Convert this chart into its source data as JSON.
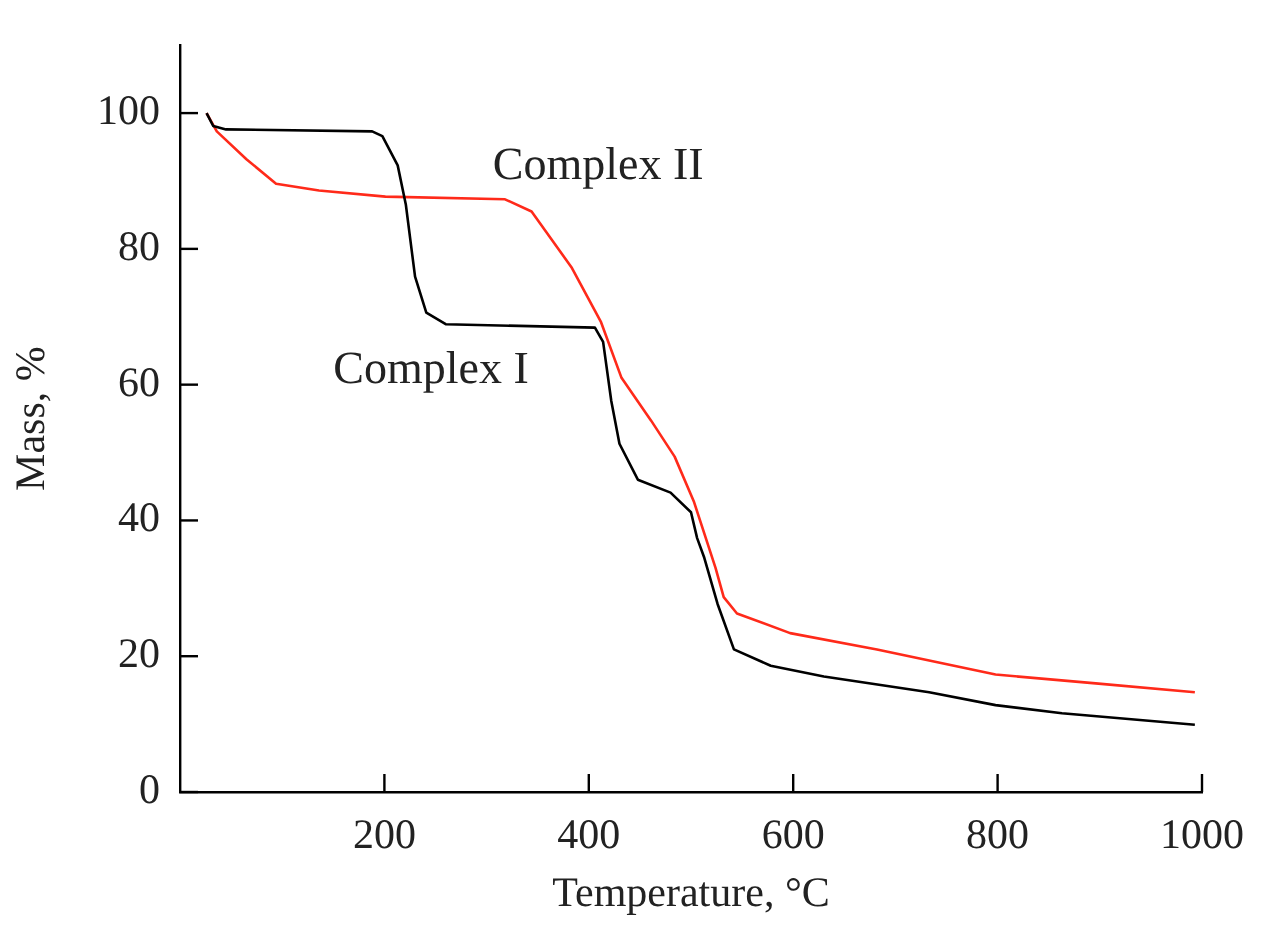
{
  "chart_data": {
    "type": "line",
    "xlabel": "Temperature, °C",
    "ylabel": "Mass, %",
    "xlim": [
      0,
      1000
    ],
    "xticks": [
      200,
      400,
      600,
      800,
      1000
    ],
    "ylim": [
      0,
      110
    ],
    "yticks": [
      0,
      20,
      40,
      60,
      80,
      100
    ],
    "grid": false,
    "legend": false,
    "marker": "none",
    "line_style": "solid",
    "series": [
      {
        "name": "Complex I",
        "color": "#000000",
        "x": [
          26,
          32.5,
          45,
          188,
          198,
          213,
          221,
          230,
          241,
          260,
          406,
          414,
          422,
          430,
          448,
          480,
          500,
          506,
          513,
          526,
          542,
          578,
          630,
          733,
          798,
          863,
          993
        ],
        "values": [
          100,
          98.1,
          97.6,
          97.3,
          96.6,
          92.3,
          86.5,
          75.9,
          70.6,
          68.9,
          68.4,
          66.3,
          57.6,
          51.3,
          46.0,
          44.1,
          41.2,
          37.4,
          34.5,
          27.7,
          21.0,
          18.6,
          17.0,
          14.7,
          12.8,
          11.6,
          9.9
        ]
      },
      {
        "name": "Complex II",
        "color": "#ff2a1a",
        "x": [
          26,
          36,
          65,
          94,
          136,
          201,
          318,
          344,
          383,
          412,
          432,
          461,
          484,
          503,
          524,
          532,
          545,
          597,
          682,
          798,
          896,
          993
        ],
        "values": [
          100,
          97.3,
          93.2,
          89.6,
          88.6,
          87.7,
          87.3,
          85.5,
          77.3,
          69.2,
          61.0,
          54.7,
          49.4,
          42.7,
          33.0,
          28.7,
          26.3,
          23.4,
          21.0,
          17.3,
          16.0,
          14.7
        ]
      }
    ]
  }
}
